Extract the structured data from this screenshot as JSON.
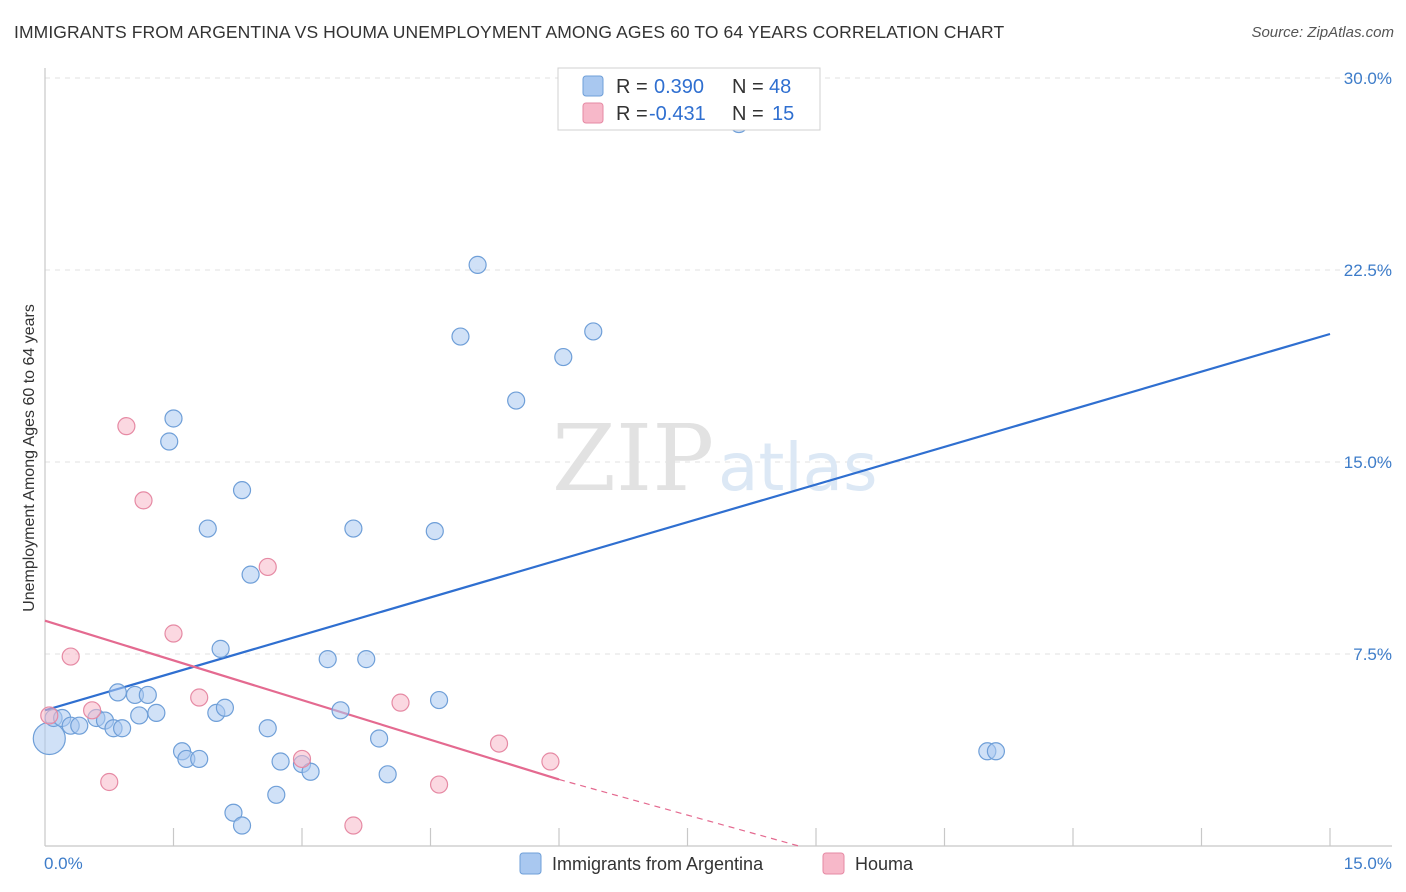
{
  "header": {
    "title": "IMMIGRANTS FROM ARGENTINA VS HOUMA UNEMPLOYMENT AMONG AGES 60 TO 64 YEARS CORRELATION CHART",
    "source": "Source: ZipAtlas.com"
  },
  "watermark": {
    "zip": "ZIP",
    "atlas": "atlas"
  },
  "stats": [
    {
      "r_label": "R =",
      "r_value": "0.390",
      "n_label": "N =",
      "n_value": "48",
      "color": "#a9c8f0"
    },
    {
      "r_label": "R =",
      "r_value": "-0.431",
      "n_label": "N =",
      "n_value": "15",
      "color": "#f7b8c9"
    }
  ],
  "chart_data": {
    "type": "scatter",
    "title": "IMMIGRANTS FROM ARGENTINA VS HOUMA UNEMPLOYMENT AMONG AGES 60 TO 64 YEARS CORRELATION CHART",
    "xlabel": "",
    "ylabel": "Unemployment Among Ages 60 to 64 years",
    "xlim": [
      0,
      15
    ],
    "ylim": [
      0,
      30.0
    ],
    "x_tick_labels": [
      "0.0%",
      "15.0%"
    ],
    "y_ticks": [
      7.5,
      15.0,
      22.5,
      30.0
    ],
    "y_tick_labels": [
      "7.5%",
      "15.0%",
      "22.5%",
      "30.0%"
    ],
    "grid": true,
    "legend_position": "bottom",
    "series": [
      {
        "name": "Immigrants from Argentina",
        "color": "#a9c8f0",
        "stroke": "#6f9fd8",
        "trend_color": "#2f6fd0",
        "trend": {
          "x0": 0.0,
          "y0": 5.3,
          "x1": 15.0,
          "y1": 20.0
        },
        "points": [
          {
            "x": 0.05,
            "y": 4.2,
            "big": true
          },
          {
            "x": 0.1,
            "y": 5.0
          },
          {
            "x": 0.2,
            "y": 5.0
          },
          {
            "x": 0.3,
            "y": 4.7
          },
          {
            "x": 0.4,
            "y": 4.7
          },
          {
            "x": 0.6,
            "y": 5.0
          },
          {
            "x": 0.7,
            "y": 4.9
          },
          {
            "x": 0.8,
            "y": 4.6
          },
          {
            "x": 0.9,
            "y": 4.6
          },
          {
            "x": 0.85,
            "y": 6.0
          },
          {
            "x": 1.05,
            "y": 5.9
          },
          {
            "x": 1.2,
            "y": 5.9
          },
          {
            "x": 1.1,
            "y": 5.1
          },
          {
            "x": 1.3,
            "y": 5.2
          },
          {
            "x": 1.6,
            "y": 3.7
          },
          {
            "x": 1.65,
            "y": 3.4
          },
          {
            "x": 1.8,
            "y": 3.4
          },
          {
            "x": 1.9,
            "y": 12.4
          },
          {
            "x": 1.5,
            "y": 16.7
          },
          {
            "x": 1.45,
            "y": 15.8
          },
          {
            "x": 2.05,
            "y": 7.7
          },
          {
            "x": 2.0,
            "y": 5.2
          },
          {
            "x": 2.1,
            "y": 5.4
          },
          {
            "x": 2.2,
            "y": 1.3
          },
          {
            "x": 2.3,
            "y": 0.8
          },
          {
            "x": 2.3,
            "y": 13.9
          },
          {
            "x": 2.4,
            "y": 10.6
          },
          {
            "x": 2.6,
            "y": 4.6
          },
          {
            "x": 2.75,
            "y": 3.3
          },
          {
            "x": 2.7,
            "y": 2.0
          },
          {
            "x": 3.0,
            "y": 3.2
          },
          {
            "x": 3.1,
            "y": 2.9
          },
          {
            "x": 3.3,
            "y": 7.3
          },
          {
            "x": 3.45,
            "y": 5.3
          },
          {
            "x": 3.6,
            "y": 12.4
          },
          {
            "x": 3.75,
            "y": 7.3
          },
          {
            "x": 3.9,
            "y": 4.2
          },
          {
            "x": 4.0,
            "y": 2.8
          },
          {
            "x": 4.55,
            "y": 12.3
          },
          {
            "x": 4.6,
            "y": 5.7
          },
          {
            "x": 4.85,
            "y": 19.9
          },
          {
            "x": 5.05,
            "y": 22.7
          },
          {
            "x": 5.5,
            "y": 17.4
          },
          {
            "x": 6.05,
            "y": 19.1
          },
          {
            "x": 6.4,
            "y": 20.1
          },
          {
            "x": 8.1,
            "y": 28.2
          },
          {
            "x": 11.0,
            "y": 3.7
          },
          {
            "x": 11.1,
            "y": 3.7
          }
        ]
      },
      {
        "name": "Houma",
        "color": "#f7b8c9",
        "stroke": "#e68aa4",
        "trend_color": "#e46a90",
        "trend": {
          "x0": 0.0,
          "y0": 8.8,
          "x1": 6.0,
          "y1": 2.6
        },
        "trend_dashed": {
          "x0": 6.0,
          "y0": 2.6,
          "x1": 8.8,
          "y1": 0.0
        },
        "points": [
          {
            "x": 0.05,
            "y": 5.1
          },
          {
            "x": 0.3,
            "y": 7.4
          },
          {
            "x": 0.55,
            "y": 5.3
          },
          {
            "x": 0.75,
            "y": 2.5
          },
          {
            "x": 0.95,
            "y": 16.4
          },
          {
            "x": 1.15,
            "y": 13.5
          },
          {
            "x": 1.5,
            "y": 8.3
          },
          {
            "x": 1.8,
            "y": 5.8
          },
          {
            "x": 2.6,
            "y": 10.9
          },
          {
            "x": 3.0,
            "y": 3.4
          },
          {
            "x": 3.6,
            "y": 0.8
          },
          {
            "x": 4.15,
            "y": 5.6
          },
          {
            "x": 4.6,
            "y": 2.4
          },
          {
            "x": 5.3,
            "y": 4.0
          },
          {
            "x": 5.9,
            "y": 3.3
          }
        ]
      }
    ]
  }
}
